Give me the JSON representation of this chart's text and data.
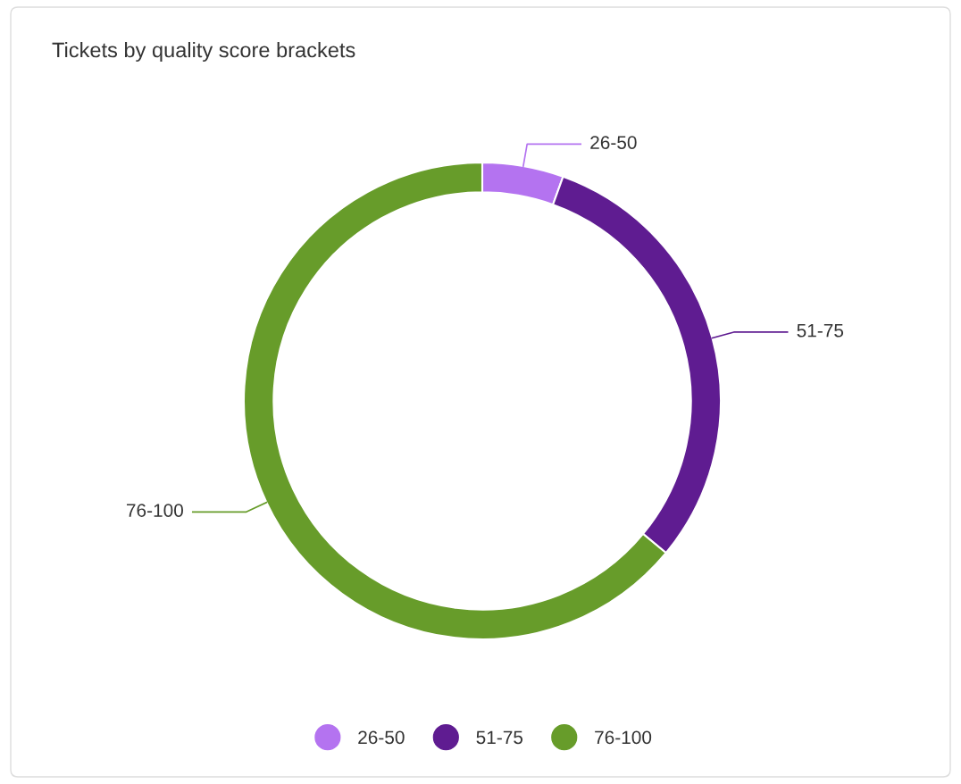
{
  "chart_data": {
    "type": "donut",
    "title": "Tickets by quality score brackets",
    "categories": [
      "26-50",
      "51-75",
      "76-100"
    ],
    "values": [
      5.5,
      30.5,
      64
    ],
    "colors": [
      "#b473f0",
      "#5f1c91",
      "#679c2a"
    ],
    "legend": "bottom"
  }
}
